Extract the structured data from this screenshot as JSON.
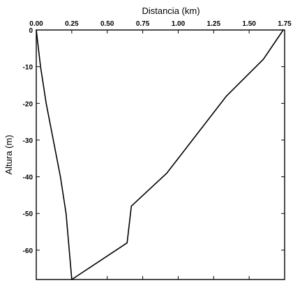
{
  "chart_data": {
    "type": "line",
    "title": "",
    "xlabel": "Distancia (km)",
    "ylabel": "Altura (m)",
    "xlim": [
      0,
      1.75
    ],
    "ylim": [
      -68,
      0
    ],
    "x_axis_position": "top",
    "grid": false,
    "x_ticks": [
      0.0,
      0.25,
      0.5,
      0.75,
      1.0,
      1.25,
      1.5,
      1.75
    ],
    "x_tick_labels": [
      "0.00",
      "0.25",
      "0.50",
      "0.75",
      "1.00",
      "1.25",
      "1.50",
      "1.75"
    ],
    "y_ticks": [
      0,
      -10,
      -20,
      -30,
      -40,
      -50,
      -60
    ],
    "y_tick_labels": [
      "0",
      "-10",
      "-20",
      "-30",
      "-40",
      "-50",
      "-60"
    ],
    "series": [
      {
        "x": [
          0.0,
          0.03,
          0.07,
          0.12,
          0.17,
          0.21,
          0.25
        ],
        "y": [
          0,
          -10,
          -20,
          -30,
          -40,
          -50,
          -68
        ]
      },
      {
        "x": [
          0.25,
          0.64,
          0.67,
          0.92,
          1.34,
          1.6,
          1.74
        ],
        "y": [
          -68,
          -58,
          -48,
          -39,
          -18,
          -8,
          0
        ]
      }
    ],
    "line_color": "#000000"
  }
}
